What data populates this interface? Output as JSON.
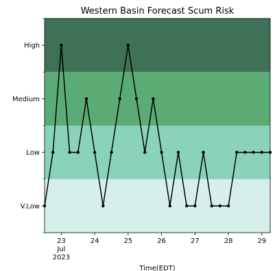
{
  "chart_data": {
    "type": "line",
    "title": "Western Basin Forecast Scum Risk",
    "xlabel": "Time(EDT)",
    "ylabel": "",
    "xlim": [
      "2023-07-22 12:00",
      "2023-07-29 06:00"
    ],
    "ylim": [
      -0.5,
      3.5
    ],
    "y_ticks": [
      {
        "value": 0,
        "label": "V.Low"
      },
      {
        "value": 1,
        "label": "Low"
      },
      {
        "value": 2,
        "label": "Medium"
      },
      {
        "value": 3,
        "label": "High"
      }
    ],
    "y_minor_ticks": [
      -0.5,
      0.5,
      1.5,
      2.5,
      3.5
    ],
    "x_ticks": [
      {
        "value": "2023-07-23",
        "label": "23",
        "sublabel1": "Jul",
        "sublabel2": "2023"
      },
      {
        "value": "2023-07-24",
        "label": "24"
      },
      {
        "value": "2023-07-25",
        "label": "25"
      },
      {
        "value": "2023-07-26",
        "label": "26"
      },
      {
        "value": "2023-07-27",
        "label": "27"
      },
      {
        "value": "2023-07-28",
        "label": "28"
      },
      {
        "value": "2023-07-29",
        "label": "29"
      }
    ],
    "bands": [
      {
        "from": -0.5,
        "to": 0.5,
        "color": "#d6efea"
      },
      {
        "from": 0.5,
        "to": 1.5,
        "color": "#8ad2ba"
      },
      {
        "from": 1.5,
        "to": 2.5,
        "color": "#5aac74"
      },
      {
        "from": 2.5,
        "to": 3.5,
        "color": "#3e7155"
      }
    ],
    "grid": false,
    "line_color": "#000000",
    "series": [
      {
        "x": [
          "2023-07-22 12:00",
          "2023-07-22 18:00",
          "2023-07-23 00:00",
          "2023-07-23 06:00",
          "2023-07-23 12:00",
          "2023-07-23 18:00",
          "2023-07-24 00:00",
          "2023-07-24 06:00",
          "2023-07-24 12:00",
          "2023-07-24 18:00",
          "2023-07-25 00:00",
          "2023-07-25 06:00",
          "2023-07-25 12:00",
          "2023-07-25 18:00",
          "2023-07-26 00:00",
          "2023-07-26 06:00",
          "2023-07-26 12:00",
          "2023-07-26 18:00",
          "2023-07-27 00:00",
          "2023-07-27 06:00",
          "2023-07-27 12:00",
          "2023-07-27 18:00",
          "2023-07-28 00:00",
          "2023-07-28 06:00",
          "2023-07-28 12:00",
          "2023-07-28 18:00",
          "2023-07-29 00:00",
          "2023-07-29 06:00"
        ],
        "values": [
          0,
          1,
          3,
          1,
          1,
          2,
          1,
          0,
          1,
          2,
          3,
          2,
          1,
          2,
          1,
          0,
          1,
          0,
          0,
          1,
          0,
          0,
          0,
          1,
          1,
          1,
          1,
          1
        ]
      }
    ]
  }
}
